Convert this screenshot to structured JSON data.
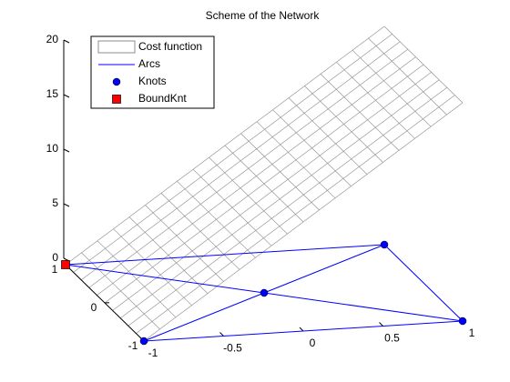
{
  "chart_data": {
    "type": "network3d",
    "title": "Scheme of the Network",
    "legend": [
      "Cost function",
      "Arcs",
      "Knots",
      "BoundKnt"
    ],
    "xlim": [
      -1,
      1
    ],
    "ylim": [
      -1,
      1
    ],
    "zlim": [
      0,
      20
    ],
    "xticks": [
      -1,
      -0.5,
      0,
      0.5,
      1
    ],
    "yticks": [
      -1,
      0,
      1
    ],
    "zticks": [
      0,
      5,
      10,
      15,
      20
    ],
    "surface": {
      "color": "#8c8c8c",
      "x": [
        -1,
        -0.9,
        -0.8,
        -0.7,
        -0.6,
        -0.5,
        -0.4,
        -0.3,
        -0.2,
        -0.1,
        0,
        0.1,
        0.2,
        0.3,
        0.4,
        0.5,
        0.6,
        0.7,
        0.8,
        0.9,
        1
      ],
      "y": [
        -1,
        -0.8,
        -0.6,
        -0.4,
        -0.2,
        0,
        0.2,
        0.4,
        0.6,
        0.8,
        1
      ],
      "z": [
        0,
        1,
        2,
        3,
        4,
        5,
        6,
        7,
        8,
        9,
        10,
        11,
        12,
        13,
        14,
        15,
        16,
        17,
        18,
        19,
        20
      ]
    },
    "knots": {
      "color": "#0000ff",
      "x": [
        -1,
        1,
        0,
        1,
        -1
      ],
      "y": [
        1,
        1,
        0,
        -1,
        -1
      ],
      "z": [
        0,
        0,
        0,
        0,
        0
      ]
    },
    "arcs": {
      "color": "#0000ff",
      "pairs": [
        [
          0,
          1
        ],
        [
          0,
          2
        ],
        [
          2,
          3
        ],
        [
          4,
          2
        ],
        [
          2,
          1
        ],
        [
          1,
          3
        ],
        [
          4,
          3
        ]
      ]
    },
    "bound_knots": {
      "color": "#ff0000",
      "indices": [
        0
      ]
    }
  }
}
